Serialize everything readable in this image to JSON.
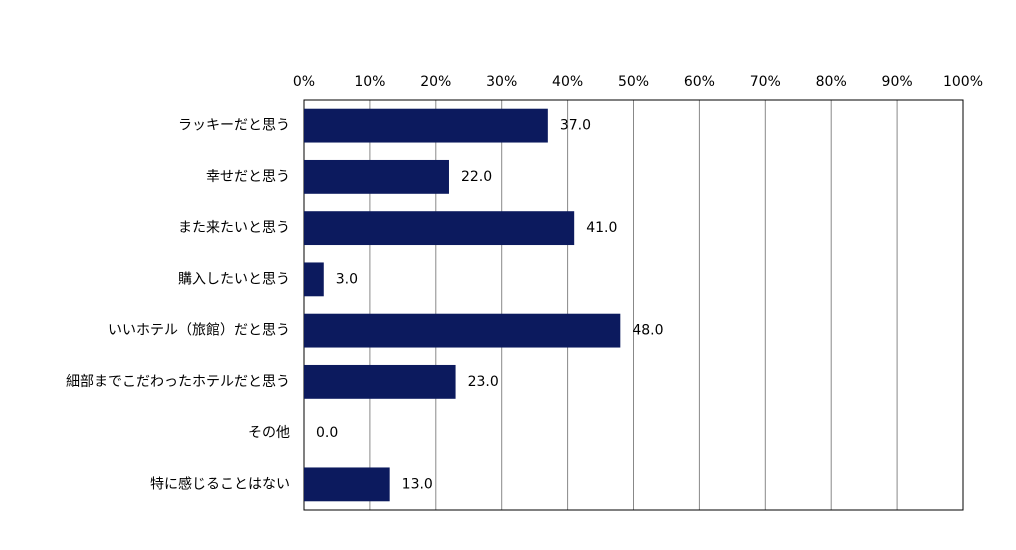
{
  "chart_data": {
    "type": "bar",
    "orientation": "horizontal",
    "categories": [
      "ラッキーだと思う",
      "幸せだと思う",
      "また来たいと思う",
      "購入したいと思う",
      "いいホテル（旅館）だと思う",
      "細部までこだわったホテルだと思う",
      "その他",
      "特に感じることはない"
    ],
    "values": [
      37,
      22,
      41,
      3,
      48,
      23,
      0,
      13
    ],
    "value_labels": [
      "37.0",
      "22.0",
      "41.0",
      "3.0",
      "48.0",
      "23.0",
      "0.0",
      "13.0"
    ],
    "color": "#0c1a5e",
    "xlim": [
      0,
      100
    ],
    "xticks": [
      {
        "value": 0,
        "label": "0%"
      },
      {
        "value": 10,
        "label": "10%"
      },
      {
        "value": 20,
        "label": "20%"
      },
      {
        "value": 30,
        "label": "30%"
      },
      {
        "value": 40,
        "label": "40%"
      },
      {
        "value": 50,
        "label": "50%"
      },
      {
        "value": 60,
        "label": "60%"
      },
      {
        "value": 70,
        "label": "70%"
      },
      {
        "value": 80,
        "label": "80%"
      },
      {
        "value": 90,
        "label": "90%"
      },
      {
        "value": 100,
        "label": "100%"
      }
    ],
    "grid": true
  }
}
